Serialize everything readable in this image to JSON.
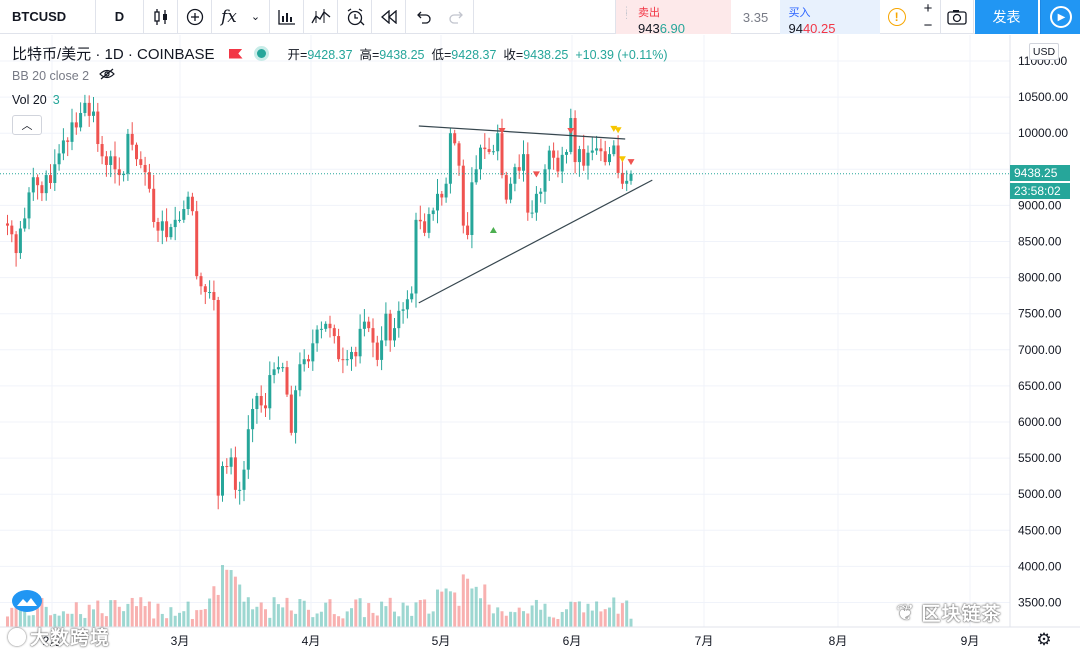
{
  "toolbar": {
    "symbol": "BTCUSD",
    "interval": "D",
    "bid_label": "卖出",
    "bid_price_main": "943",
    "bid_price_tail": "6.90",
    "spread": "3.35",
    "ask_label": "买入",
    "ask_price_main": "94",
    "ask_price_tail": "40.25",
    "info_icon": "!",
    "plus": "+",
    "minus": "−",
    "publish_label": "发表"
  },
  "legend": {
    "title": "比特币/美元 · 1D · COINBASE",
    "open_label": "开=",
    "open": "9428.37",
    "high_label": "高=",
    "high": "9438.25",
    "low_label": "低=",
    "low": "9428.37",
    "close_label": "收=",
    "close": "9438.25",
    "change": "+10.39 (+0.11%)",
    "bb": "BB 20 close 2",
    "vol_label": "Vol 20",
    "vol_value": "3"
  },
  "price_axis": {
    "currency": "USD",
    "last_price": "9438.25",
    "countdown": "23:58:02"
  },
  "watermarks": {
    "left": "大数跨境",
    "right": "区块链茶"
  },
  "colors": {
    "up": "#26a69a",
    "down": "#ef5350",
    "accent": "#2196f3"
  },
  "chart_data": {
    "type": "candlestick",
    "symbol": "BTCUSD",
    "exchange": "COINBASE",
    "interval": "1D",
    "ylim": [
      3600,
      11300
    ],
    "y_ticks": [
      "11000.00",
      "10500.00",
      "10000.00",
      "9500.00",
      "9000.00",
      "8500.00",
      "8000.00",
      "7500.00",
      "7000.00",
      "6500.00",
      "6000.00",
      "5500.00",
      "5000.00",
      "4500.00",
      "4000.00",
      "3500.00"
    ],
    "x_ticks": [
      "2月",
      "3月",
      "4月",
      "5月",
      "6月",
      "7月",
      "8月",
      "9月"
    ],
    "last": 9438.25,
    "series": [
      {
        "name": "BTCUSD",
        "closes": [
          8720,
          8600,
          8340,
          8680,
          8820,
          9180,
          9390,
          9280,
          9170,
          9420,
          9310,
          9570,
          9720,
          9900,
          9880,
          10150,
          10080,
          10280,
          10420,
          10240,
          10300,
          9850,
          9680,
          9560,
          9680,
          9500,
          9420,
          9440,
          9990,
          9840,
          9640,
          9560,
          9460,
          9230,
          8770,
          8650,
          8780,
          8560,
          8700,
          8800,
          8800,
          8950,
          9120,
          8920,
          8020,
          7880,
          7800,
          7800,
          7690,
          4980,
          5390,
          5380,
          5510,
          5060,
          5060,
          5340,
          5900,
          6180,
          6360,
          6230,
          6190,
          6650,
          6730,
          6760,
          6760,
          6380,
          5850,
          6440,
          6800,
          6870,
          6840,
          7090,
          7280,
          7290,
          7360,
          7300,
          7190,
          6870,
          6860,
          6870,
          6970,
          6910,
          7290,
          7390,
          7300,
          7100,
          6860,
          7130,
          7500,
          7130,
          7300,
          7540,
          7560,
          7700,
          7780,
          8800,
          8780,
          8620,
          8880,
          8930,
          9160,
          9110,
          9300,
          10000,
          9860,
          9550,
          8720,
          8590,
          9320,
          9500,
          9800,
          9780,
          9740,
          9750,
          10000,
          9420,
          9080,
          9300,
          9530,
          9480,
          9710,
          8900,
          8900,
          9160,
          9190,
          9500,
          9760,
          9660,
          9470,
          9700,
          9740,
          10210,
          9600,
          9780,
          9550,
          9730,
          9760,
          9790,
          9750,
          9600,
          9710,
          9830,
          9450,
          9300,
          9340,
          9438
        ]
      }
    ],
    "annotations": [
      "descending resistance trendline",
      "ascending support trendline"
    ]
  }
}
